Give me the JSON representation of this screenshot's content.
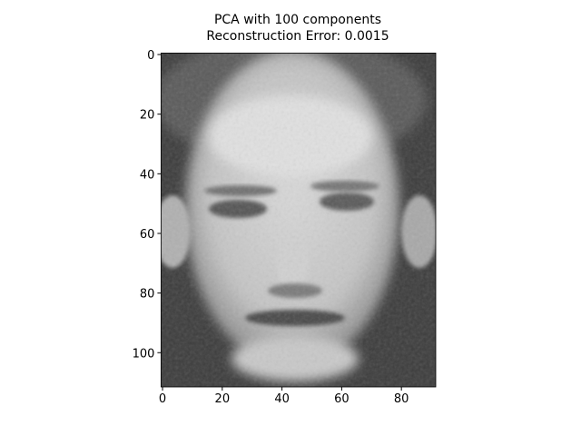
{
  "chart_data": {
    "type": "image",
    "title": "PCA with 100 components",
    "subtitle": "Reconstruction Error: 0.0015",
    "colormap": "gray",
    "xlim": [
      -0.5,
      91.5
    ],
    "ylim": [
      111.5,
      -0.5
    ],
    "xticks": [
      0,
      20,
      40,
      60,
      80
    ],
    "yticks": [
      0,
      20,
      40,
      60,
      80,
      100
    ]
  }
}
